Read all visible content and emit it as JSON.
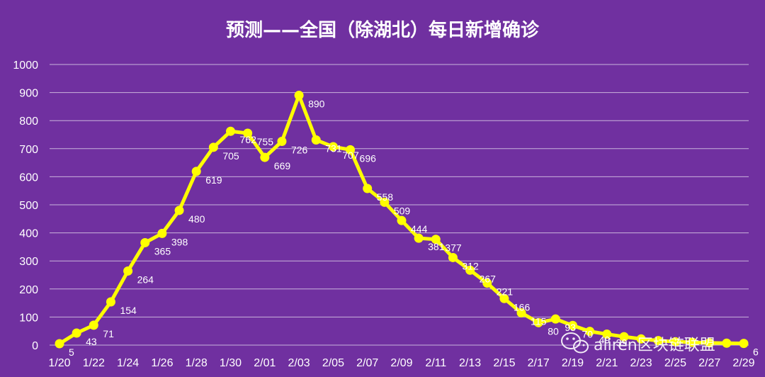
{
  "chart_data": {
    "type": "line",
    "title": "预测——全国（除湖北）每日新增确诊",
    "xlabel": "",
    "ylabel": "",
    "ylim": [
      0,
      1000
    ],
    "yticks": [
      0,
      100,
      200,
      300,
      400,
      500,
      600,
      700,
      800,
      900,
      1000
    ],
    "grid": true,
    "x_tick_labels": [
      "1/20",
      "1/22",
      "1/24",
      "1/26",
      "1/28",
      "1/30",
      "2/01",
      "2/03",
      "2/05",
      "2/07",
      "2/09",
      "2/11",
      "2/13",
      "2/15",
      "2/17",
      "2/19",
      "2/21",
      "2/23",
      "2/25",
      "2/27",
      "2/29"
    ],
    "x": [
      "1/20",
      "1/21",
      "1/22",
      "1/23",
      "1/24",
      "1/25",
      "1/26",
      "1/27",
      "1/28",
      "1/29",
      "1/30",
      "1/31",
      "2/01",
      "2/02",
      "2/03",
      "2/04",
      "2/05",
      "2/06",
      "2/07",
      "2/08",
      "2/09",
      "2/10",
      "2/11",
      "2/12",
      "2/13",
      "2/14",
      "2/15",
      "2/16",
      "2/17",
      "2/18",
      "2/19",
      "2/20",
      "2/21",
      "2/22",
      "2/23",
      "2/24",
      "2/25",
      "2/26",
      "2/27",
      "2/28",
      "2/29"
    ],
    "series": [
      {
        "color": "#FFFF00",
        "values": [
          5,
          43,
          71,
          154,
          264,
          365,
          398,
          480,
          619,
          705,
          762,
          755,
          669,
          726,
          890,
          731,
          707,
          696,
          558,
          509,
          444,
          381,
          377,
          312,
          267,
          221,
          166,
          115,
          80,
          93,
          70,
          49,
          39,
          30,
          22,
          16,
          12,
          10,
          8,
          7,
          6
        ],
        "data_labels": [
          "5",
          "43",
          "71",
          "154",
          "264",
          "365",
          "398",
          "480",
          "619",
          "705",
          "762",
          "755",
          "669",
          "726",
          "890",
          "731",
          "707",
          "696",
          "558",
          "509",
          "444",
          "381",
          "377",
          "312",
          "267",
          "221",
          "166",
          "115",
          "80",
          "93",
          "70",
          "49",
          "39",
          "",
          "",
          "",
          "",
          "",
          "",
          "",
          "6"
        ]
      }
    ]
  },
  "watermark": {
    "text": "aliren区块链联盟",
    "icon": "wechat-icon"
  }
}
